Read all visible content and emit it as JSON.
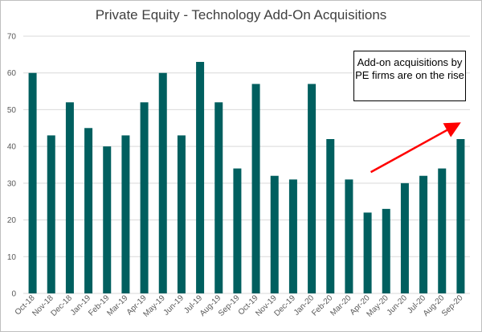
{
  "chart_data": {
    "type": "bar",
    "title": "Private Equity - Technology Add-On Acquisitions",
    "categories": [
      "Oct-18",
      "Nov-18",
      "Dec-18",
      "Jan-19",
      "Feb-19",
      "Mar-19",
      "Apr-19",
      "May-19",
      "Jun-19",
      "Jul-19",
      "Aug-19",
      "Sep-19",
      "Oct-19",
      "Nov-19",
      "Dec-19",
      "Jan-20",
      "Feb-20",
      "Mar-20",
      "Apr-20",
      "May-20",
      "Jun-20",
      "Jul-20",
      "Aug-20",
      "Sep-20"
    ],
    "values": [
      60,
      43,
      52,
      45,
      40,
      43,
      52,
      60,
      43,
      63,
      52,
      34,
      57,
      32,
      31,
      57,
      42,
      31,
      22,
      23,
      30,
      32,
      34,
      42
    ],
    "ylim": [
      0,
      70
    ],
    "yticks": [
      0,
      10,
      20,
      30,
      40,
      50,
      60,
      70
    ],
    "xlabel": "",
    "ylabel": "",
    "grid": true,
    "colors": {
      "bar": "#005f5f",
      "grid": "#d9d9d9",
      "arrow": "#ff0000"
    },
    "annotation": {
      "text": "Add-on acquisitions by PE firms are on the rise",
      "arrow_from": [
        "Apr-20",
        33
      ],
      "arrow_to": [
        "Sep-20",
        46
      ]
    }
  }
}
